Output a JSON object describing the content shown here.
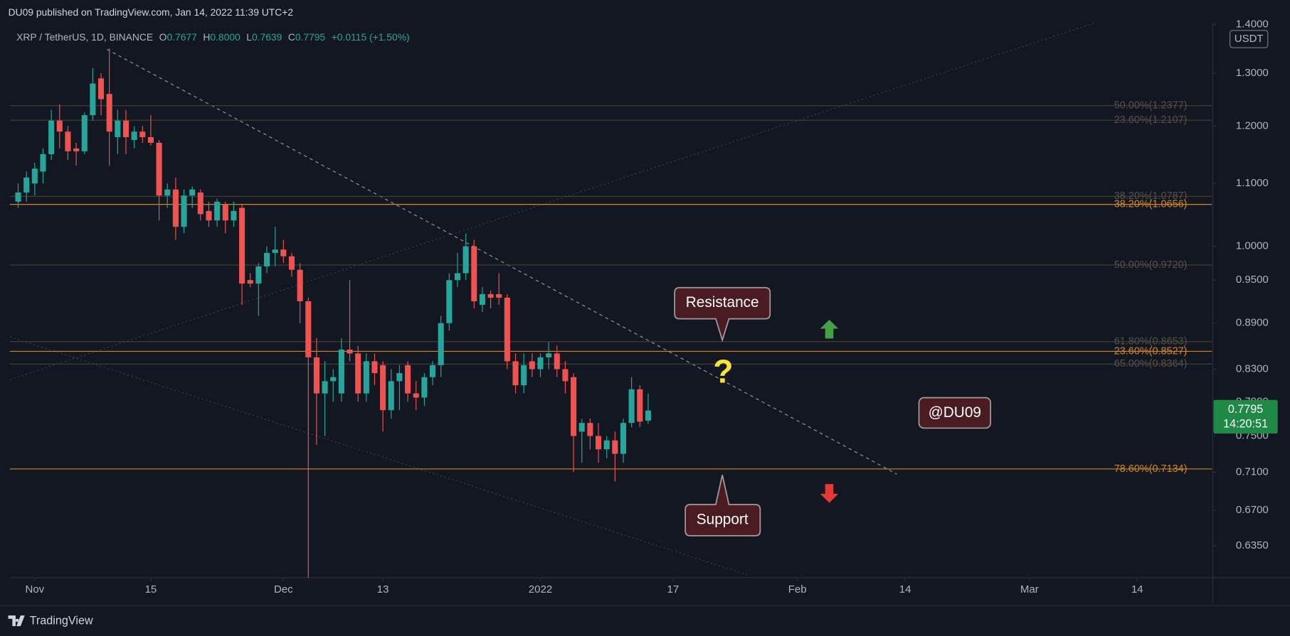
{
  "header": {
    "publisher": "DU09 published on TradingView.com, Jan 14, 2022 11:39 UTC+2",
    "symbol": "XRP / TetherUS, 1D, BINANCE",
    "ohlc": [
      {
        "label": "O",
        "value": "0.7677"
      },
      {
        "label": "H",
        "value": "0.8000"
      },
      {
        "label": "L",
        "value": "0.7639"
      },
      {
        "label": "C",
        "value": "0.7795"
      }
    ],
    "change": "+0.0115 (+1.50%)"
  },
  "footer": {
    "brand": "TradingView"
  },
  "chart_data": {
    "type": "candlestick",
    "currency": "USDT",
    "log_scale": true,
    "up_color": "#26a69a",
    "down_color": "#ef5350",
    "x": [
      "2021-10-30",
      "2021-10-31",
      "2021-11-01",
      "2021-11-02",
      "2021-11-03",
      "2021-11-04",
      "2021-11-05",
      "2021-11-06",
      "2021-11-07",
      "2021-11-08",
      "2021-11-09",
      "2021-11-10",
      "2021-11-11",
      "2021-11-12",
      "2021-11-13",
      "2021-11-14",
      "2021-11-15",
      "2021-11-16",
      "2021-11-17",
      "2021-11-18",
      "2021-11-19",
      "2021-11-20",
      "2021-11-21",
      "2021-11-22",
      "2021-11-23",
      "2021-11-24",
      "2021-11-25",
      "2021-11-26",
      "2021-11-27",
      "2021-11-28",
      "2021-11-29",
      "2021-11-30",
      "2021-12-01",
      "2021-12-02",
      "2021-12-03",
      "2021-12-04",
      "2021-12-05",
      "2021-12-06",
      "2021-12-07",
      "2021-12-08",
      "2021-12-09",
      "2021-12-10",
      "2021-12-11",
      "2021-12-12",
      "2021-12-13",
      "2021-12-14",
      "2021-12-15",
      "2021-12-16",
      "2021-12-17",
      "2021-12-18",
      "2021-12-19",
      "2021-12-20",
      "2021-12-21",
      "2021-12-22",
      "2021-12-23",
      "2021-12-24",
      "2021-12-25",
      "2021-12-26",
      "2021-12-27",
      "2021-12-28",
      "2021-12-29",
      "2021-12-30",
      "2021-12-31",
      "2022-01-01",
      "2022-01-02",
      "2022-01-03",
      "2022-01-04",
      "2022-01-05",
      "2022-01-06",
      "2022-01-07",
      "2022-01-08",
      "2022-01-09",
      "2022-01-10",
      "2022-01-11",
      "2022-01-12",
      "2022-01-13",
      "2022-01-14"
    ],
    "open": [
      1.07,
      1.085,
      1.1,
      1.12,
      1.15,
      1.21,
      1.19,
      1.16,
      1.155,
      1.22,
      1.29,
      1.26,
      1.18,
      1.21,
      1.175,
      1.19,
      1.18,
      1.17,
      1.08,
      1.09,
      1.03,
      1.08,
      1.085,
      1.055,
      1.04,
      1.065,
      1.04,
      1.06,
      0.95,
      0.945,
      0.97,
      0.99,
      0.995,
      0.985,
      0.965,
      0.92,
      0.845,
      0.8,
      0.815,
      0.8,
      0.855,
      0.85,
      0.8,
      0.84,
      0.835,
      0.78,
      0.815,
      0.835,
      0.8,
      0.795,
      0.82,
      0.835,
      0.89,
      0.95,
      0.96,
      1.0,
      0.915,
      0.93,
      0.93,
      0.925,
      0.84,
      0.81,
      0.84,
      0.83,
      0.845,
      0.85,
      0.83,
      0.82,
      0.755,
      0.765,
      0.75,
      0.735,
      0.745,
      0.73,
      0.765,
      0.805,
      0.7677
    ],
    "high": [
      1.1,
      1.12,
      1.135,
      1.16,
      1.23,
      1.24,
      1.2,
      1.17,
      1.225,
      1.31,
      1.3,
      1.35,
      1.23,
      1.23,
      1.2,
      1.2,
      1.22,
      1.175,
      1.1,
      1.11,
      1.09,
      1.095,
      1.09,
      1.07,
      1.075,
      1.07,
      1.07,
      1.065,
      0.96,
      0.975,
      1.0,
      1.03,
      1.01,
      0.99,
      0.975,
      0.925,
      0.87,
      0.84,
      0.83,
      0.87,
      0.95,
      0.86,
      0.85,
      0.85,
      0.84,
      0.83,
      0.835,
      0.84,
      0.815,
      0.825,
      0.84,
      0.9,
      0.96,
      0.99,
      1.02,
      1.01,
      0.94,
      0.935,
      0.96,
      0.93,
      0.85,
      0.85,
      0.85,
      0.85,
      0.865,
      0.86,
      0.84,
      0.825,
      0.77,
      0.77,
      0.765,
      0.75,
      0.755,
      0.77,
      0.82,
      0.81,
      0.8
    ],
    "low": [
      1.06,
      1.07,
      1.08,
      1.1,
      1.14,
      1.16,
      1.14,
      1.13,
      1.15,
      1.21,
      1.22,
      1.13,
      1.15,
      1.15,
      1.16,
      1.17,
      1.165,
      1.04,
      1.06,
      1.01,
      1.02,
      1.06,
      1.04,
      1.03,
      1.03,
      1.02,
      1.03,
      0.915,
      0.94,
      0.9,
      0.96,
      0.97,
      0.975,
      0.955,
      0.89,
      0.6,
      0.74,
      0.75,
      0.79,
      0.79,
      0.84,
      0.79,
      0.79,
      0.81,
      0.755,
      0.77,
      0.78,
      0.79,
      0.78,
      0.785,
      0.81,
      0.82,
      0.88,
      0.94,
      0.95,
      0.91,
      0.905,
      0.91,
      0.915,
      0.83,
      0.8,
      0.8,
      0.82,
      0.82,
      0.83,
      0.82,
      0.8,
      0.71,
      0.72,
      0.735,
      0.72,
      0.725,
      0.7,
      0.72,
      0.76,
      0.76,
      0.7639
    ],
    "close": [
      1.085,
      1.11,
      1.125,
      1.15,
      1.21,
      1.19,
      1.155,
      1.155,
      1.22,
      1.28,
      1.25,
      1.19,
      1.21,
      1.18,
      1.19,
      1.18,
      1.17,
      1.08,
      1.09,
      1.03,
      1.08,
      1.09,
      1.05,
      1.04,
      1.07,
      1.04,
      1.055,
      0.945,
      0.945,
      0.97,
      0.99,
      0.995,
      0.985,
      0.965,
      0.92,
      0.845,
      0.8,
      0.815,
      0.82,
      0.855,
      0.85,
      0.8,
      0.84,
      0.825,
      0.78,
      0.815,
      0.825,
      0.8,
      0.795,
      0.82,
      0.835,
      0.89,
      0.95,
      0.96,
      1.0,
      0.92,
      0.93,
      0.925,
      0.925,
      0.84,
      0.81,
      0.835,
      0.83,
      0.845,
      0.85,
      0.83,
      0.815,
      0.75,
      0.765,
      0.75,
      0.735,
      0.745,
      0.73,
      0.765,
      0.805,
      0.7665,
      0.7795
    ],
    "last_price": {
      "price": "0.7795",
      "countdown": "14:20:51"
    },
    "xlim": [
      "2021-10-29",
      "2022-03-23"
    ],
    "xticks": [
      {
        "value": "2021-11-01",
        "label": "Nov"
      },
      {
        "value": "2021-11-15",
        "label": "15"
      },
      {
        "value": "2021-12-01",
        "label": "Dec"
      },
      {
        "value": "2021-12-13",
        "label": "13"
      },
      {
        "value": "2022-01-01",
        "label": "2022"
      },
      {
        "value": "2022-01-17",
        "label": "17"
      },
      {
        "value": "2022-02-01",
        "label": "Feb"
      },
      {
        "value": "2022-02-14",
        "label": "14"
      },
      {
        "value": "2022-03-01",
        "label": "Mar"
      },
      {
        "value": "2022-03-14",
        "label": "14"
      }
    ],
    "ylim": [
      0.605,
      1.403
    ],
    "yticks": [
      {
        "value": 1.4,
        "label": "1.4000"
      },
      {
        "value": 1.3,
        "label": "1.3000"
      },
      {
        "value": 1.2,
        "label": "1.2000"
      },
      {
        "value": 1.1,
        "label": "1.1000"
      },
      {
        "value": 1.0,
        "label": "1.0000"
      },
      {
        "value": 0.95,
        "label": "0.9500"
      },
      {
        "value": 0.89,
        "label": "0.8900"
      },
      {
        "value": 0.83,
        "label": "0.8300"
      },
      {
        "value": 0.79,
        "label": "0.7900"
      },
      {
        "value": 0.75,
        "label": "0.7500"
      },
      {
        "value": 0.71,
        "label": "0.7100"
      },
      {
        "value": 0.67,
        "label": "0.6700"
      },
      {
        "value": 0.635,
        "label": "0.6350"
      }
    ],
    "levels": [
      {
        "label": "50.00%(1.2377)",
        "value": 1.2377,
        "color": "#4a3f36"
      },
      {
        "label": "23.60%(1.2107)",
        "value": 1.2107,
        "color": "#4a3f36"
      },
      {
        "label": "38.20%(1.0787)",
        "value": 1.0787,
        "color": "#4a3f36"
      },
      {
        "label": "38.20%(1.0656)",
        "value": 1.0656,
        "color": "#d1861e"
      },
      {
        "label": "50.00%(0.9720)",
        "value": 0.972,
        "color": "#4a3f36"
      },
      {
        "label": "61.80%(0.8653)",
        "value": 0.8653,
        "color": "#4a3f36"
      },
      {
        "label": "23.60%(0.8527)",
        "value": 0.8527,
        "color": "#d1861e"
      },
      {
        "label": "65.00%(0.8364)",
        "value": 0.8364,
        "color": "#4a3f36"
      },
      {
        "label": "78.60%(0.7134)",
        "value": 0.7134,
        "color": "#d1861e"
      }
    ],
    "annotations": {
      "resistance": "Resistance",
      "question": "?",
      "support": "Support",
      "author": "@DU09"
    }
  }
}
